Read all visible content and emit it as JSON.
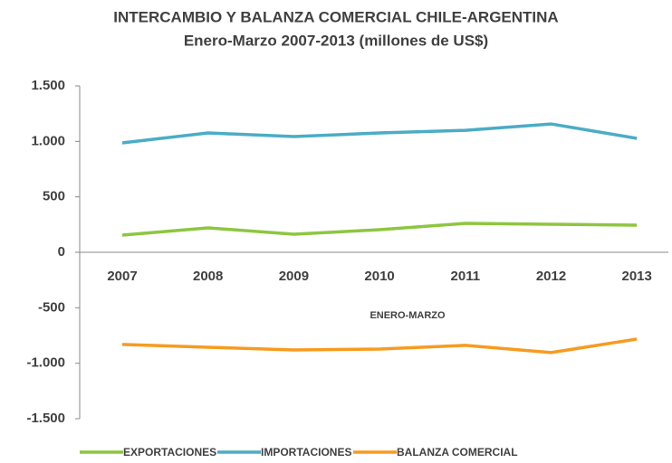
{
  "chart_data": {
    "type": "line",
    "title": "INTERCAMBIO Y BALANZA COMERCIAL CHILE-ARGENTINA",
    "subtitle": "Enero-Marzo 2007-2013 (millones de US$)",
    "x_label": "ENERO-MARZO",
    "categories": [
      "2007",
      "2008",
      "2009",
      "2010",
      "2011",
      "2012",
      "2013"
    ],
    "series": [
      {
        "name": "EXPORTACIONES",
        "color": "#8dc63f",
        "values": [
          155,
          220,
          163,
          204,
          261,
          253,
          245
        ]
      },
      {
        "name": "IMPORTACIONES",
        "color": "#4bacc6",
        "values": [
          986,
          1076,
          1043,
          1076,
          1100,
          1157,
          1027
        ]
      },
      {
        "name": "BALANZA COMERCIAL",
        "color": "#f79b1f",
        "values": [
          -831,
          -856,
          -880,
          -872,
          -839,
          -904,
          -782
        ]
      }
    ],
    "ylim": [
      -1500,
      1500
    ],
    "yticks": [
      {
        "value": -1500,
        "label": "-1.500"
      },
      {
        "value": -1000,
        "label": "-1.000"
      },
      -500,
      0,
      500,
      {
        "value": 1000,
        "label": "1.000"
      },
      {
        "value": 1500,
        "label": "1.500"
      }
    ],
    "legend": "bottom"
  }
}
